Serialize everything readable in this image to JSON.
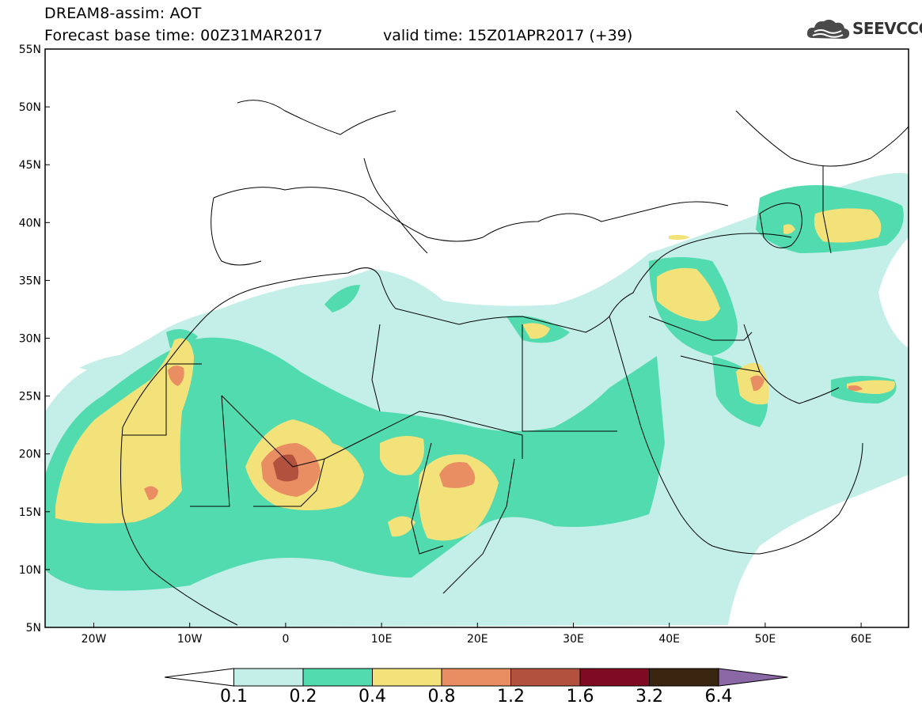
{
  "header": {
    "title": "DREAM8-assim: AOT",
    "base_time": "Forecast base time: 00Z31MAR2017",
    "valid_time": "valid time: 15Z01APR2017 (+39)",
    "logo_text": "SEEVCCC",
    "logo_icon": "cloud-icon"
  },
  "axes": {
    "lat_labels": [
      "55N",
      "50N",
      "45N",
      "40N",
      "35N",
      "30N",
      "25N",
      "20N",
      "15N",
      "10N",
      "5N"
    ],
    "lon_labels": [
      "20W",
      "10W",
      "0",
      "10E",
      "20E",
      "30E",
      "40E",
      "50E",
      "60E"
    ]
  },
  "colorbar": {
    "labels": [
      "0.1",
      "0.2",
      "0.4",
      "0.8",
      "1.2",
      "1.6",
      "3.2",
      "6.4"
    ],
    "colors": [
      "#ffffff",
      "#c4efe9",
      "#52dbae",
      "#f3e27a",
      "#e98d63",
      "#b2523e",
      "#7e0b21",
      "#3a2511",
      "#8b68a6"
    ]
  },
  "map": {
    "extent": {
      "lon": [
        -25,
        65
      ],
      "lat": [
        5,
        55
      ]
    },
    "region": "North Africa, Europe and Middle East"
  }
}
